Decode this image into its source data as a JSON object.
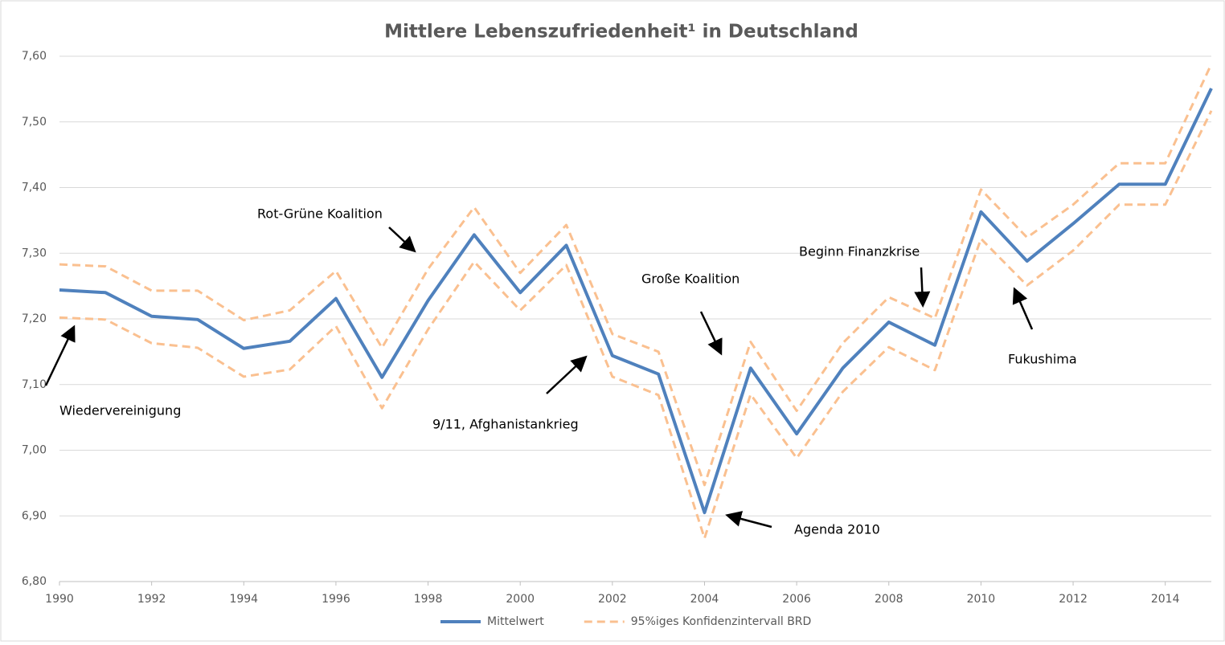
{
  "chart_data": {
    "type": "line",
    "title": "Mittlere Lebenszufriedenheit¹ in Deutschland",
    "x": [
      1990,
      1991,
      1992,
      1993,
      1994,
      1995,
      1996,
      1997,
      1998,
      1999,
      2000,
      2001,
      2002,
      2003,
      2004,
      2005,
      2006,
      2007,
      2008,
      2009,
      2010,
      2011,
      2012,
      2013,
      2014,
      2015
    ],
    "series": [
      {
        "name": "Mittelwert",
        "color": "#4f81bd",
        "dashed": false,
        "values": [
          7.244,
          7.24,
          7.204,
          7.199,
          7.155,
          7.166,
          7.231,
          7.111,
          7.228,
          7.328,
          7.24,
          7.312,
          7.144,
          7.116,
          6.905,
          7.125,
          7.025,
          7.125,
          7.195,
          7.16,
          7.363,
          7.288,
          7.345,
          7.405,
          7.405,
          7.551
        ]
      },
      {
        "name": "95%iges Konfidenzintervall BRD",
        "color": "#fac090",
        "dashed": true,
        "upper": [
          7.283,
          7.28,
          7.243,
          7.243,
          7.198,
          7.213,
          7.273,
          7.156,
          7.276,
          7.37,
          7.27,
          7.343,
          7.177,
          7.15,
          6.947,
          7.165,
          7.06,
          7.163,
          7.233,
          7.201,
          7.397,
          7.324,
          7.374,
          7.437,
          7.437,
          7.588
        ],
        "lower": [
          7.202,
          7.199,
          7.163,
          7.156,
          7.112,
          7.123,
          7.189,
          7.064,
          7.184,
          7.287,
          7.213,
          7.282,
          7.112,
          7.084,
          6.866,
          7.085,
          6.988,
          7.089,
          7.157,
          7.122,
          7.322,
          7.251,
          7.304,
          7.374,
          7.374,
          7.517
        ]
      }
    ],
    "xlim": [
      1990,
      2015
    ],
    "xticks": [
      1990,
      1992,
      1994,
      1996,
      1998,
      2000,
      2002,
      2004,
      2006,
      2008,
      2010,
      2012,
      2014
    ],
    "ylim": [
      6.8,
      7.6
    ],
    "yticks": [
      {
        "value": 6.8,
        "label": "6,80"
      },
      {
        "value": 6.9,
        "label": "6,90"
      },
      {
        "value": 7.0,
        "label": "7,00"
      },
      {
        "value": 7.1,
        "label": "7,10"
      },
      {
        "value": 7.2,
        "label": "7,20"
      },
      {
        "value": 7.3,
        "label": "7,30"
      },
      {
        "value": 7.4,
        "label": "7,40"
      },
      {
        "value": 7.5,
        "label": "7,50"
      },
      {
        "value": 7.6,
        "label": "7,60"
      }
    ],
    "grid": true,
    "legend": "bottom",
    "annotations": [
      "Rot-Grüne Koalition",
      "Große Koalition",
      "Beginn Finanzkrise",
      "Fukushima",
      "Agenda 2010",
      "9/11, Afghanistankrieg",
      "Wiedervereinigung"
    ]
  }
}
